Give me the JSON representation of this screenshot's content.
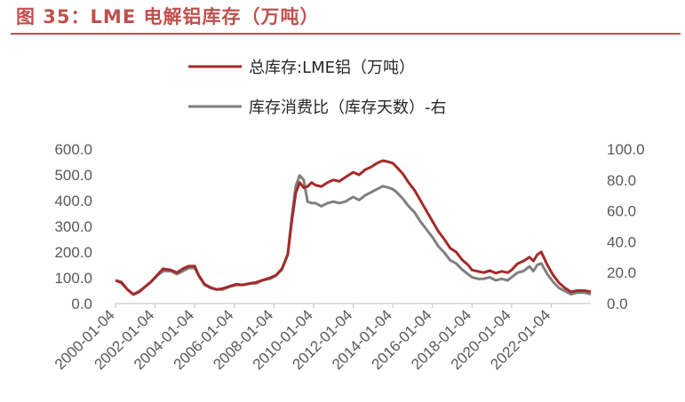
{
  "figure_title": "图 35：LME 电解铝库存（万吨）",
  "chart_data": {
    "type": "line",
    "title": "",
    "xlabel": "",
    "ylabel": "",
    "x_tick_labels": [
      "2000-01-04",
      "2002-01-04",
      "2004-01-04",
      "2006-01-04",
      "2008-01-04",
      "2010-01-04",
      "2012-01-04",
      "2014-01-04",
      "2016-01-04",
      "2018-01-04",
      "2020-01-04",
      "2022-01-04"
    ],
    "y_left": {
      "range": [
        0,
        600
      ],
      "ticks": [
        "0.0",
        "100.0",
        "200.0",
        "300.0",
        "400.0",
        "500.0",
        "600.0"
      ]
    },
    "y_right": {
      "range": [
        0,
        100
      ],
      "ticks": [
        "0.0",
        "20.0",
        "40.0",
        "60.0",
        "80.0",
        "100.0"
      ]
    },
    "grid": false,
    "legend_position": "top-center",
    "series": [
      {
        "name": "总库存:LME铝（万吨）",
        "axis": "left",
        "color": "#a52a2a",
        "x": [
          2000.0,
          2000.3,
          2000.6,
          2000.9,
          2001.2,
          2001.5,
          2001.8,
          2002.1,
          2002.4,
          2002.8,
          2003.1,
          2003.4,
          2003.7,
          2004.0,
          2004.2,
          2004.5,
          2004.8,
          2005.1,
          2005.4,
          2005.8,
          2006.1,
          2006.4,
          2006.8,
          2007.1,
          2007.4,
          2007.8,
          2008.1,
          2008.4,
          2008.7,
          2008.9,
          2009.1,
          2009.3,
          2009.5,
          2009.7,
          2009.9,
          2010.1,
          2010.4,
          2010.7,
          2011.0,
          2011.3,
          2011.6,
          2012.0,
          2012.3,
          2012.6,
          2012.9,
          2013.2,
          2013.5,
          2013.8,
          2014.0,
          2014.2,
          2014.5,
          2014.8,
          2015.1,
          2015.4,
          2015.7,
          2016.0,
          2016.3,
          2016.6,
          2016.9,
          2017.2,
          2017.5,
          2017.8,
          2018.0,
          2018.3,
          2018.6,
          2018.9,
          2019.2,
          2019.5,
          2019.8,
          2020.0,
          2020.3,
          2020.6,
          2020.9,
          2021.1,
          2021.3,
          2021.5,
          2021.8,
          2022.1,
          2022.4,
          2022.7,
          2023.0,
          2023.3,
          2023.7,
          2024.0
        ],
        "y": [
          90,
          80,
          55,
          35,
          45,
          65,
          85,
          110,
          135,
          130,
          120,
          135,
          145,
          145,
          110,
          75,
          62,
          55,
          58,
          68,
          75,
          72,
          78,
          82,
          90,
          100,
          110,
          135,
          190,
          320,
          430,
          470,
          450,
          455,
          470,
          460,
          455,
          470,
          480,
          475,
          490,
          510,
          500,
          520,
          530,
          545,
          555,
          550,
          545,
          530,
          505,
          470,
          440,
          400,
          360,
          320,
          280,
          250,
          215,
          200,
          170,
          150,
          130,
          125,
          120,
          128,
          118,
          125,
          120,
          130,
          155,
          165,
          180,
          165,
          190,
          200,
          150,
          110,
          80,
          60,
          45,
          50,
          50,
          45
        ]
      },
      {
        "name": "库存消费比（库存天数）-右",
        "axis": "right",
        "color": "#808080",
        "x": [
          2000.0,
          2000.3,
          2000.6,
          2000.9,
          2001.2,
          2001.5,
          2001.8,
          2002.1,
          2002.4,
          2002.8,
          2003.1,
          2003.4,
          2003.7,
          2004.0,
          2004.2,
          2004.5,
          2004.8,
          2005.1,
          2005.4,
          2005.8,
          2006.1,
          2006.4,
          2006.8,
          2007.1,
          2007.4,
          2007.8,
          2008.1,
          2008.4,
          2008.7,
          2008.9,
          2009.1,
          2009.3,
          2009.5,
          2009.7,
          2009.9,
          2010.1,
          2010.4,
          2010.7,
          2011.0,
          2011.3,
          2011.6,
          2012.0,
          2012.3,
          2012.6,
          2012.9,
          2013.2,
          2013.5,
          2013.8,
          2014.0,
          2014.2,
          2014.5,
          2014.8,
          2015.1,
          2015.4,
          2015.7,
          2016.0,
          2016.3,
          2016.6,
          2016.9,
          2017.2,
          2017.5,
          2017.8,
          2018.0,
          2018.3,
          2018.6,
          2018.9,
          2019.2,
          2019.5,
          2019.8,
          2020.0,
          2020.3,
          2020.6,
          2020.9,
          2021.1,
          2021.3,
          2021.5,
          2021.8,
          2022.1,
          2022.4,
          2022.7,
          2023.0,
          2023.3,
          2023.7,
          2024.0
        ],
        "y": [
          15,
          14,
          9,
          6,
          8,
          11,
          14,
          18,
          21,
          21,
          19,
          21,
          23,
          23,
          18,
          12,
          10,
          9,
          9,
          11,
          12,
          12,
          13,
          13,
          15,
          16,
          18,
          22,
          32,
          56,
          76,
          83,
          80,
          66,
          65,
          65,
          63,
          65,
          66,
          65,
          66,
          69,
          67,
          70,
          72,
          74,
          76,
          75,
          74,
          72,
          68,
          63,
          59,
          53,
          48,
          43,
          37,
          33,
          28,
          26,
          22,
          19,
          17,
          16,
          16,
          17,
          15,
          16,
          15,
          17,
          20,
          21,
          24,
          21,
          25,
          26,
          19,
          14,
          10,
          8,
          6,
          7,
          7,
          6
        ]
      }
    ]
  }
}
